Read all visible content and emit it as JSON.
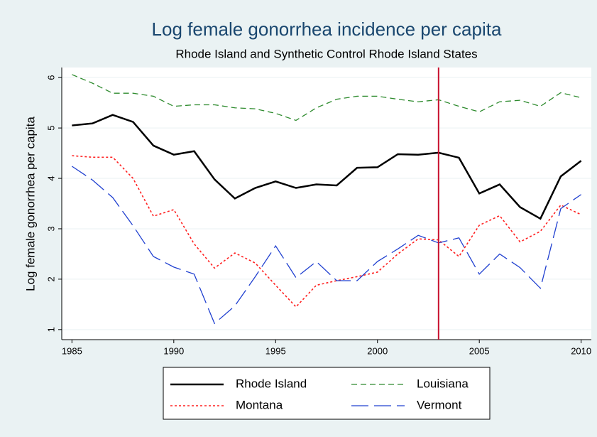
{
  "chart_data": {
    "type": "line",
    "title": "Log female gonorrhea incidence per capita",
    "subtitle": "Rhode Island and Synthetic Control Rhode Island States",
    "y_label": "Log female gonorrhea per capita",
    "x": [
      1985,
      1986,
      1987,
      1988,
      1989,
      1990,
      1991,
      1992,
      1993,
      1994,
      1995,
      1996,
      1997,
      1998,
      1999,
      2000,
      2001,
      2002,
      2003,
      2004,
      2005,
      2006,
      2007,
      2008,
      2009,
      2010
    ],
    "series": [
      {
        "name": "Rhode Island",
        "color": "#000000",
        "style": "solid",
        "values": [
          5.05,
          5.09,
          5.26,
          5.12,
          4.65,
          4.47,
          4.54,
          3.98,
          3.6,
          3.81,
          3.94,
          3.81,
          3.88,
          3.86,
          4.21,
          4.22,
          4.48,
          4.47,
          4.51,
          4.41,
          3.7,
          3.88,
          3.43,
          3.2,
          4.04,
          4.35
        ]
      },
      {
        "name": "Louisiana",
        "color": "#2e8b2e",
        "style": "dash",
        "values": [
          6.06,
          5.89,
          5.69,
          5.69,
          5.63,
          5.43,
          5.46,
          5.46,
          5.4,
          5.38,
          5.29,
          5.15,
          5.4,
          5.57,
          5.63,
          5.63,
          5.57,
          5.52,
          5.56,
          5.43,
          5.32,
          5.52,
          5.55,
          5.43,
          5.7,
          5.6
        ]
      },
      {
        "name": "Montana",
        "color": "#ff2020",
        "style": "dot",
        "values": [
          4.45,
          4.42,
          4.42,
          4.0,
          3.25,
          3.38,
          2.7,
          2.22,
          2.52,
          2.32,
          1.88,
          1.45,
          1.88,
          1.97,
          2.05,
          2.14,
          2.5,
          2.8,
          2.78,
          2.45,
          3.07,
          3.26,
          2.74,
          2.95,
          3.47,
          3.28
        ]
      },
      {
        "name": "Vermont",
        "color": "#2040d0",
        "style": "longdash",
        "values": [
          4.24,
          3.97,
          3.62,
          3.06,
          2.45,
          2.24,
          2.1,
          1.12,
          1.47,
          2.05,
          2.66,
          2.03,
          2.35,
          1.97,
          1.97,
          2.35,
          2.6,
          2.87,
          2.72,
          2.82,
          2.1,
          2.5,
          2.23,
          1.82,
          3.4,
          3.68
        ]
      }
    ],
    "xlim": [
      1984.5,
      2010.5
    ],
    "xticks": [
      1985,
      1990,
      1995,
      2000,
      2005,
      2010
    ],
    "ylim": [
      0.8,
      6.2
    ],
    "yticks": [
      1,
      2,
      3,
      4,
      5,
      6
    ],
    "vline": 2003,
    "vline_color": "#c8102e",
    "grid": true
  }
}
